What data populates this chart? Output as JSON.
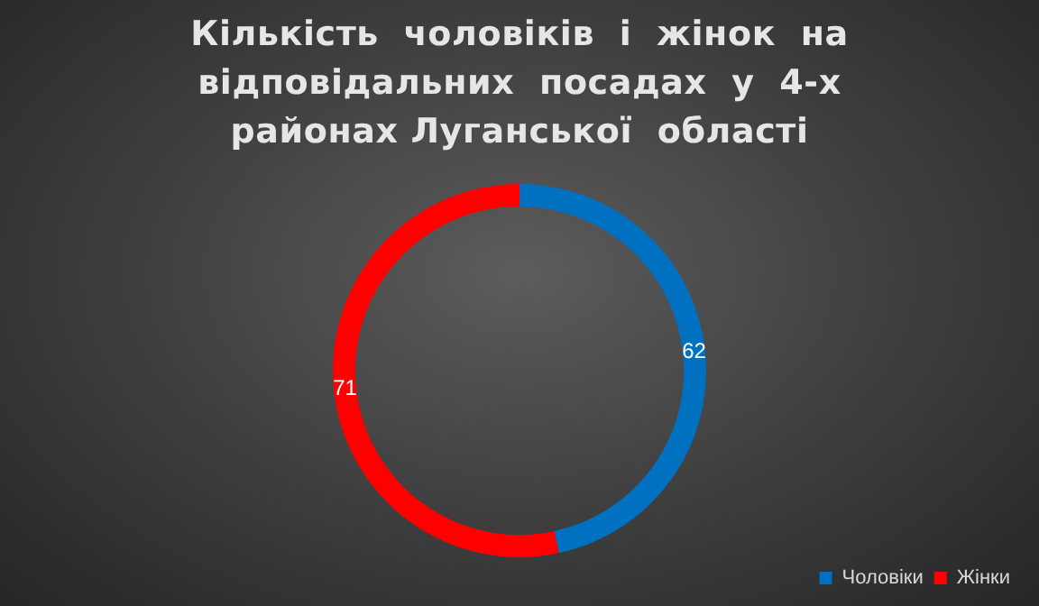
{
  "chart_data": {
    "type": "donut",
    "title": "Кількість  чоловіків  і  жінок  на відповідальних  посадах  у  4-х районах Луганської  області",
    "categories": [
      "Чоловіки",
      "Жінки"
    ],
    "values": [
      62,
      71
    ],
    "colors": [
      "#0070c0",
      "#ff0000"
    ],
    "data_labels": true,
    "legend": "bottom right"
  }
}
